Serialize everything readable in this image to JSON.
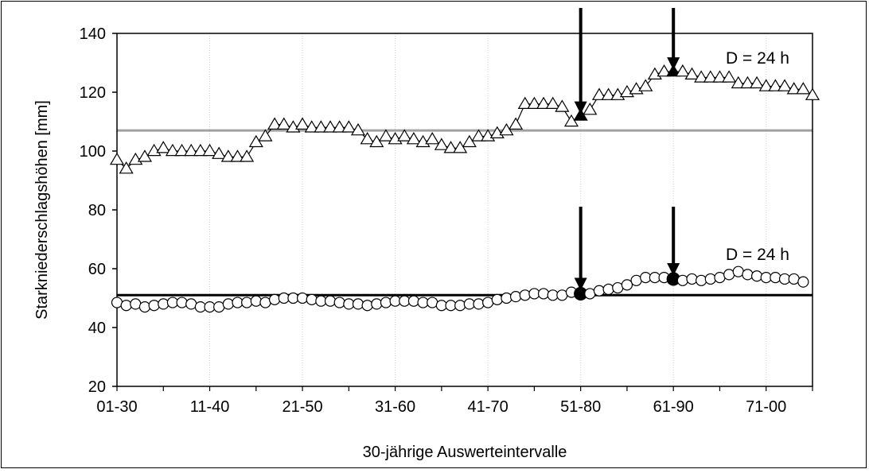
{
  "chart_data": {
    "type": "line",
    "xlabel": "30-jährige Auswerteintervalle",
    "ylabel": "Starkniederschlagshöhen [mm]",
    "ylim": [
      20,
      140
    ],
    "y_ticks": [
      20,
      40,
      60,
      80,
      100,
      120,
      140
    ],
    "x_tick_labels": [
      "01-30",
      "11-40",
      "21-50",
      "31-60",
      "41-70",
      "51-80",
      "61-90",
      "71-00"
    ],
    "x_tick_positions": [
      0,
      10,
      20,
      30,
      40,
      50,
      60,
      70
    ],
    "grid": "vertical",
    "series": [
      {
        "marker": "triangle",
        "values": [
          97,
          94,
          97,
          98,
          100,
          101,
          100,
          100,
          100,
          100,
          100,
          99,
          98,
          98,
          98,
          103,
          105,
          109,
          109,
          108,
          109,
          108,
          108,
          108,
          108,
          108,
          107,
          104,
          103,
          105,
          104,
          105,
          104,
          103,
          104,
          102,
          101,
          101,
          103,
          105,
          105,
          106,
          107,
          109,
          116,
          116,
          116,
          116,
          115,
          110,
          112,
          114,
          119,
          119,
          119,
          120,
          121,
          122,
          126,
          127,
          127,
          127,
          126,
          125,
          125,
          125,
          125,
          123,
          123,
          123,
          122,
          122,
          122,
          121,
          121,
          119
        ],
        "reference_line": 107,
        "reference_color": "#a0a0a0",
        "highlight_indices": [
          50,
          60
        ],
        "annotation": "D = 24 h"
      },
      {
        "marker": "circle",
        "values": [
          48.5,
          47.5,
          48,
          47,
          47.5,
          48,
          48.5,
          48.5,
          48,
          47,
          47,
          47,
          48,
          48.5,
          48.5,
          49,
          48.5,
          49.5,
          50,
          50,
          50,
          49.5,
          49,
          49,
          48.5,
          48,
          48,
          47.5,
          48,
          48.5,
          49,
          49,
          49,
          48.5,
          48.5,
          47.5,
          47.5,
          47.5,
          48,
          48,
          48.5,
          49.5,
          50,
          50.5,
          51,
          51.5,
          51.5,
          51,
          51,
          52,
          51.5,
          51.5,
          52.5,
          53,
          53.5,
          54.5,
          56,
          57,
          57,
          57,
          56.5,
          56,
          56.5,
          56,
          56.5,
          57,
          58,
          59,
          58,
          57.5,
          57,
          57,
          56.5,
          56.5,
          55.5
        ],
        "reference_line": 51,
        "reference_color": "#000000",
        "highlight_indices": [
          50,
          60
        ],
        "annotation": "D = 24 h"
      }
    ]
  }
}
